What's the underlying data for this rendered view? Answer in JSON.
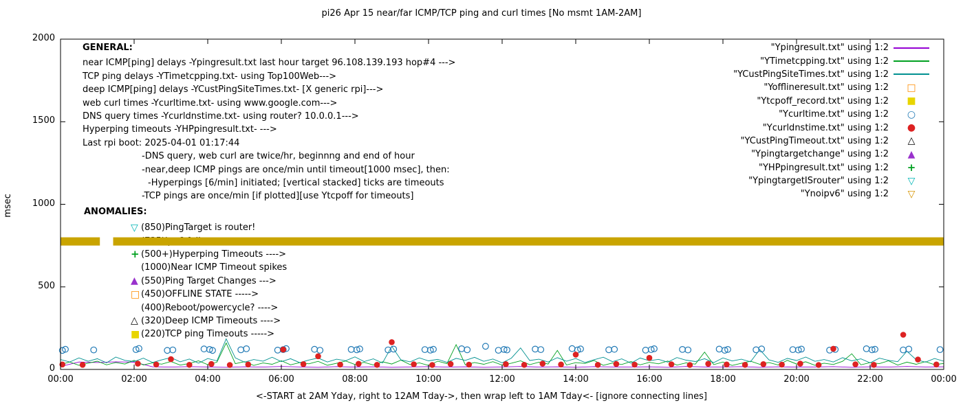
{
  "title": "pi26 Apr 15  near/far ICMP/TCP ping and curl times [No msmt 1AM-2AM]",
  "footer": "<-START at 2AM Yday, right to 12AM Tday->, then wrap left to 1AM Tday<- [ignore connecting lines]",
  "y_axis": {
    "label": "msec",
    "ticks": [
      0,
      500,
      1000,
      1500,
      2000
    ]
  },
  "x_axis": {
    "ticks": [
      "00:00",
      "02:00",
      "04:00",
      "06:00",
      "08:00",
      "10:00",
      "12:00",
      "14:00",
      "16:00",
      "18:00",
      "20:00",
      "22:00",
      "00:00"
    ]
  },
  "legend": [
    {
      "label": "\"Ypingresult.txt\" using 1:2",
      "sample": "line",
      "color": "#9400d3"
    },
    {
      "label": "\"YTimetcpping.txt\" using 1:2",
      "sample": "line",
      "color": "#00a020"
    },
    {
      "label": "\"YCustPingSiteTimes.txt\" using 1:2",
      "sample": "line",
      "color": "#009090"
    },
    {
      "label": "\"Yofflineresult.txt\" using 1:2",
      "sample": "square-open",
      "color": "#ff8c00"
    },
    {
      "label": "\"Ytcpoff_record.txt\" using 1:2",
      "sample": "square-filled",
      "color": "#e8d500"
    },
    {
      "label": "\"Ycurltime.txt\" using 1:2",
      "sample": "circle-open",
      "color": "#2079b5"
    },
    {
      "label": "\"Ycurldnstime.txt\" using 1:2",
      "sample": "circle-filled",
      "color": "#dd2222"
    },
    {
      "label": "\"YCustPingTimeout.txt\" using 1:2",
      "sample": "triangle-up-open",
      "color": "#000000"
    },
    {
      "label": "\"Ypingtargetchange\" using 1:2",
      "sample": "triangle-up-filled",
      "color": "#9932cc"
    },
    {
      "label": "\"YHPpingresult.txt\" using 1:2",
      "sample": "plus",
      "color": "#00a020"
    },
    {
      "label": "\"YpingtargetISrouter\" using 1:2",
      "sample": "triangle-down-open",
      "color": "#00b5b5"
    },
    {
      "label": "\"Ynoipv6\" using 1:2",
      "sample": "triangle-down-open",
      "color": "#d69400"
    }
  ],
  "general": {
    "heading": "GENERAL:",
    "lines": [
      {
        "text": "near ICMP[ping] delays -Ypingresult.txt last hour target 96.108.139.193 hop#4 --->",
        "indent": 0
      },
      {
        "text": "TCP ping delays -YTimetcpping.txt- using Top100Web--->",
        "indent": 0
      },
      {
        "text": "deep ICMP[ping] delays -YCustPingSiteTimes.txt- [X generic rpi]--->",
        "indent": 0
      },
      {
        "text": "web curl times -Ycurltime.txt- using www.google.com--->",
        "indent": 0
      },
      {
        "text": "DNS query times -Ycurldnstime.txt- using router? 10.0.0.1--->",
        "indent": 0
      },
      {
        "text": "Hyperping timeouts -YHPpingresult.txt- --->",
        "indent": 0
      },
      {
        "text": "Last rpi boot: 2025-04-01 01:17:44",
        "indent": 0
      },
      {
        "text": "-DNS query, web curl are twice/hr, beginnng and end of hour",
        "indent": 1
      },
      {
        "text": "-near,deep ICMP pings are once/min until timeout[1000 msec], then:",
        "indent": 1
      },
      {
        "text": "-Hyperpings [6/min] initiated; [vertical stacked] ticks are timeouts",
        "indent": 2
      },
      {
        "text": "-TCP pings are once/min [if plotted][use Ytcpoff for timeouts]",
        "indent": 1
      }
    ]
  },
  "anomalies": {
    "heading": "ANOMALIES:",
    "items": [
      {
        "marker": "triangle-down-open",
        "color": "#00b5b5",
        "text": "(850)PingTarget is router!"
      },
      {
        "marker": "triangle-down-open",
        "color": "#d69400",
        "text": "(735)ipv6 failure --->"
      },
      {
        "marker": "plus",
        "color": "#00a020",
        "text": "(500+)Hyperping Timeouts ---->"
      },
      {
        "marker": "none",
        "color": "",
        "text": "(1000)Near ICMP Timeout spikes"
      },
      {
        "marker": "triangle-up-filled",
        "color": "#9932cc",
        "text": "(550)Ping Target Changes --->"
      },
      {
        "marker": "square-open",
        "color": "#ff8c00",
        "text": "(450)OFFLINE STATE ----->"
      },
      {
        "marker": "none",
        "color": "",
        "text": "(400)Reboot/powercycle? ---->"
      },
      {
        "marker": "triangle-up-open",
        "color": "#000000",
        "text": "(320)Deep ICMP Timeouts ---->"
      },
      {
        "marker": "square-filled",
        "color": "#e8d500",
        "text": "(220)TCP ping Timeouts ----->"
      }
    ]
  },
  "chart_data": {
    "type": "line+scatter",
    "title": "pi26 Apr 15  near/far ICMP/TCP ping and curl times [No msmt 1AM-2AM]",
    "xlabel": "<-START at 2AM Yday, right to 12AM Tday->, then wrap left to 1AM Tday<- [ignore connecting lines]",
    "ylabel": "msec",
    "ylim": [
      0,
      2000
    ],
    "xlim_hours": [
      0,
      24
    ],
    "x_tick_hours": [
      0,
      2,
      4,
      6,
      8,
      10,
      12,
      14,
      16,
      18,
      20,
      22,
      24
    ],
    "grid": false,
    "legend_position": "top-right",
    "series": [
      {
        "name": "Ypingresult.txt",
        "type": "line",
        "color": "#9400d3",
        "x_start": 0,
        "x_step": 0.5,
        "values": [
          18,
          45,
          42,
          46,
          44,
          16,
          14,
          17,
          15,
          13,
          16,
          14,
          18,
          15,
          13,
          17,
          14,
          16,
          13,
          15,
          17,
          14,
          16,
          13,
          15,
          18,
          14,
          16,
          13,
          17,
          15,
          14,
          16,
          13,
          18,
          15,
          14,
          17,
          13,
          16,
          14,
          15,
          17,
          13,
          16,
          14,
          18,
          15,
          16
        ]
      },
      {
        "name": "YTimetcpping.txt",
        "type": "line",
        "color": "#00a020",
        "x_start": 0,
        "x_step": 0.25,
        "values": [
          30,
          45,
          25,
          38,
          50,
          28,
          42,
          33,
          55,
          27,
          40,
          32,
          48,
          26,
          36,
          52,
          29,
          44,
          160,
          35,
          47,
          24,
          39,
          31,
          53,
          28,
          41,
          34,
          49,
          25,
          37,
          51,
          30,
          43,
          27,
          46,
          33,
          56,
          29,
          40,
          24,
          50,
          35,
          150,
          28,
          42,
          31,
          47,
          26,
          38,
          52,
          29,
          44,
          33,
          115,
          27,
          41,
          36,
          54,
          25,
          39,
          30,
          48,
          28,
          43,
          34,
          51,
          26,
          40,
          32,
          105,
          29,
          45,
          24,
          37,
          50,
          31,
          42,
          27,
          55,
          33,
          46,
          25,
          38,
          30,
          49,
          95,
          28,
          41,
          35,
          52,
          26,
          44,
          31,
          47,
          29,
          36
        ]
      },
      {
        "name": "YCustPingSiteTimes.txt",
        "type": "line",
        "color": "#009090",
        "x_start": 0,
        "x_step": 0.25,
        "values": [
          60,
          45,
          70,
          50,
          65,
          40,
          75,
          55,
          48,
          68,
          42,
          58,
          72,
          46,
          63,
          38,
          66,
          52,
          185,
          70,
          44,
          60,
          50,
          74,
          47,
          65,
          41,
          57,
          69,
          45,
          62,
          53,
          76,
          48,
          64,
          39,
          140,
          58,
          46,
          70,
          52,
          61,
          43,
          67,
          55,
          73,
          49,
          63,
          40,
          68,
          130,
          54,
          62,
          45,
          71,
          50,
          66,
          42,
          59,
          74,
          47,
          64,
          38,
          69,
          53,
          61,
          44,
          72,
          56,
          48,
          65,
          41,
          70,
          51,
          62,
          46,
          120,
          58,
          43,
          67,
          54,
          75,
          49,
          60,
          45,
          71,
          52,
          64,
          40,
          68,
          55,
          47,
          110,
          59,
          44,
          66,
          50
        ]
      },
      {
        "name": "Ycurltime.txt",
        "type": "scatter",
        "marker": "circle-open",
        "color": "#2079b5",
        "points": [
          [
            0.05,
            115
          ],
          [
            0.13,
            122
          ],
          [
            0.9,
            118
          ],
          [
            2.05,
            120
          ],
          [
            2.13,
            127
          ],
          [
            2.9,
            115
          ],
          [
            3.05,
            118
          ],
          [
            3.9,
            124
          ],
          [
            4.05,
            121
          ],
          [
            4.13,
            115
          ],
          [
            4.9,
            119
          ],
          [
            5.05,
            125
          ],
          [
            5.9,
            117
          ],
          [
            6.05,
            120
          ],
          [
            6.13,
            126
          ],
          [
            6.9,
            122
          ],
          [
            7.05,
            116
          ],
          [
            7.9,
            121
          ],
          [
            8.05,
            119
          ],
          [
            8.13,
            124
          ],
          [
            8.9,
            118
          ],
          [
            9.05,
            123
          ],
          [
            9.9,
            120
          ],
          [
            10.05,
            117
          ],
          [
            10.13,
            122
          ],
          [
            10.9,
            125
          ],
          [
            11.05,
            119
          ],
          [
            11.55,
            140
          ],
          [
            11.9,
            116
          ],
          [
            12.05,
            121
          ],
          [
            12.13,
            118
          ],
          [
            12.9,
            123
          ],
          [
            13.05,
            120
          ],
          [
            13.9,
            126
          ],
          [
            14.05,
            118
          ],
          [
            14.13,
            124
          ],
          [
            14.9,
            119
          ],
          [
            15.05,
            122
          ],
          [
            15.9,
            117
          ],
          [
            16.05,
            120
          ],
          [
            16.13,
            125
          ],
          [
            16.9,
            121
          ],
          [
            17.05,
            118
          ],
          [
            17.9,
            123
          ],
          [
            18.05,
            116
          ],
          [
            18.13,
            121
          ],
          [
            18.9,
            119
          ],
          [
            19.05,
            124
          ],
          [
            19.9,
            120
          ],
          [
            20.05,
            118
          ],
          [
            20.13,
            123
          ],
          [
            20.9,
            117
          ],
          [
            21.05,
            121
          ],
          [
            21.9,
            125
          ],
          [
            22.05,
            119
          ],
          [
            22.13,
            122
          ],
          [
            22.9,
            118
          ],
          [
            23.05,
            123
          ],
          [
            23.9,
            120
          ]
        ]
      },
      {
        "name": "Ycurldnstime.txt",
        "type": "scatter",
        "marker": "circle-filled",
        "color": "#dd2222",
        "points": [
          [
            0.05,
            30
          ],
          [
            0.6,
            28
          ],
          [
            2.1,
            35
          ],
          [
            2.6,
            30
          ],
          [
            3.0,
            62
          ],
          [
            3.5,
            28
          ],
          [
            4.1,
            33
          ],
          [
            4.6,
            27
          ],
          [
            5.1,
            30
          ],
          [
            6.05,
            120
          ],
          [
            6.6,
            32
          ],
          [
            7.0,
            80
          ],
          [
            7.6,
            29
          ],
          [
            8.1,
            34
          ],
          [
            8.6,
            28
          ],
          [
            9.0,
            165
          ],
          [
            9.6,
            31
          ],
          [
            10.1,
            27
          ],
          [
            10.6,
            33
          ],
          [
            11.1,
            29
          ],
          [
            12.1,
            32
          ],
          [
            12.6,
            28
          ],
          [
            13.1,
            35
          ],
          [
            13.6,
            30
          ],
          [
            14.0,
            90
          ],
          [
            14.6,
            28
          ],
          [
            15.1,
            33
          ],
          [
            15.6,
            29
          ],
          [
            16.0,
            70
          ],
          [
            16.6,
            31
          ],
          [
            17.1,
            27
          ],
          [
            17.6,
            34
          ],
          [
            18.1,
            30
          ],
          [
            18.6,
            28
          ],
          [
            19.1,
            32
          ],
          [
            19.6,
            29
          ],
          [
            20.1,
            35
          ],
          [
            20.6,
            27
          ],
          [
            21.0,
            125
          ],
          [
            21.6,
            31
          ],
          [
            22.1,
            28
          ],
          [
            22.9,
            210
          ],
          [
            23.3,
            60
          ],
          [
            23.8,
            30
          ]
        ]
      },
      {
        "name": "Ynoipv6",
        "type": "band",
        "color": "#c9a400",
        "y": 775,
        "thickness": 50,
        "segments": [
          [
            0,
            1.07
          ],
          [
            1.43,
            24
          ]
        ]
      }
    ]
  }
}
